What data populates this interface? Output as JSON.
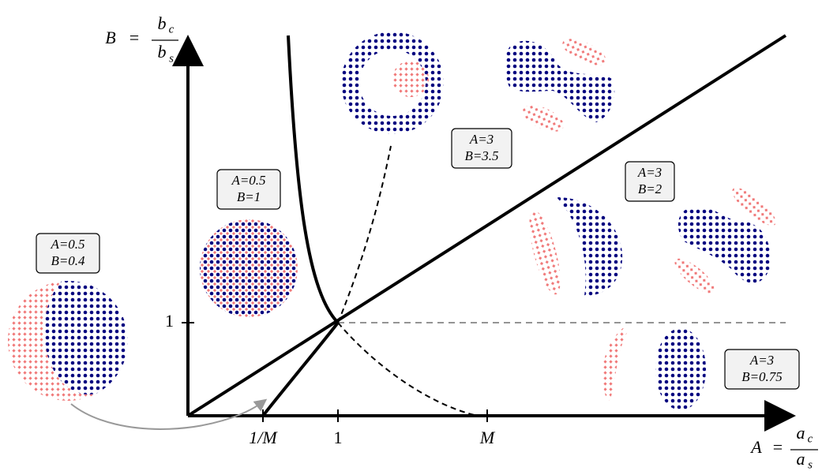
{
  "axes": {
    "y_label": {
      "variable": "B",
      "equals": "=",
      "numerator": "b",
      "numerator_sub": "c",
      "denominator": "b",
      "denominator_sub": "s"
    },
    "x_label": {
      "variable": "A",
      "equals": "=",
      "numerator": "a",
      "numerator_sub": "c",
      "denominator": "a",
      "denominator_sub": "s"
    },
    "x_ticks": [
      "1/M",
      "1",
      "M"
    ],
    "y_ticks": [
      "1"
    ]
  },
  "states": [
    {
      "A": "A=0.5",
      "B": "B=0.4"
    },
    {
      "A": "A=0.5",
      "B": "B=1"
    },
    {
      "A": "A=3",
      "B": "B=3.5"
    },
    {
      "A": "A=3",
      "B": "B=2"
    },
    {
      "A": "A=3",
      "B": "B=0.75"
    }
  ]
}
